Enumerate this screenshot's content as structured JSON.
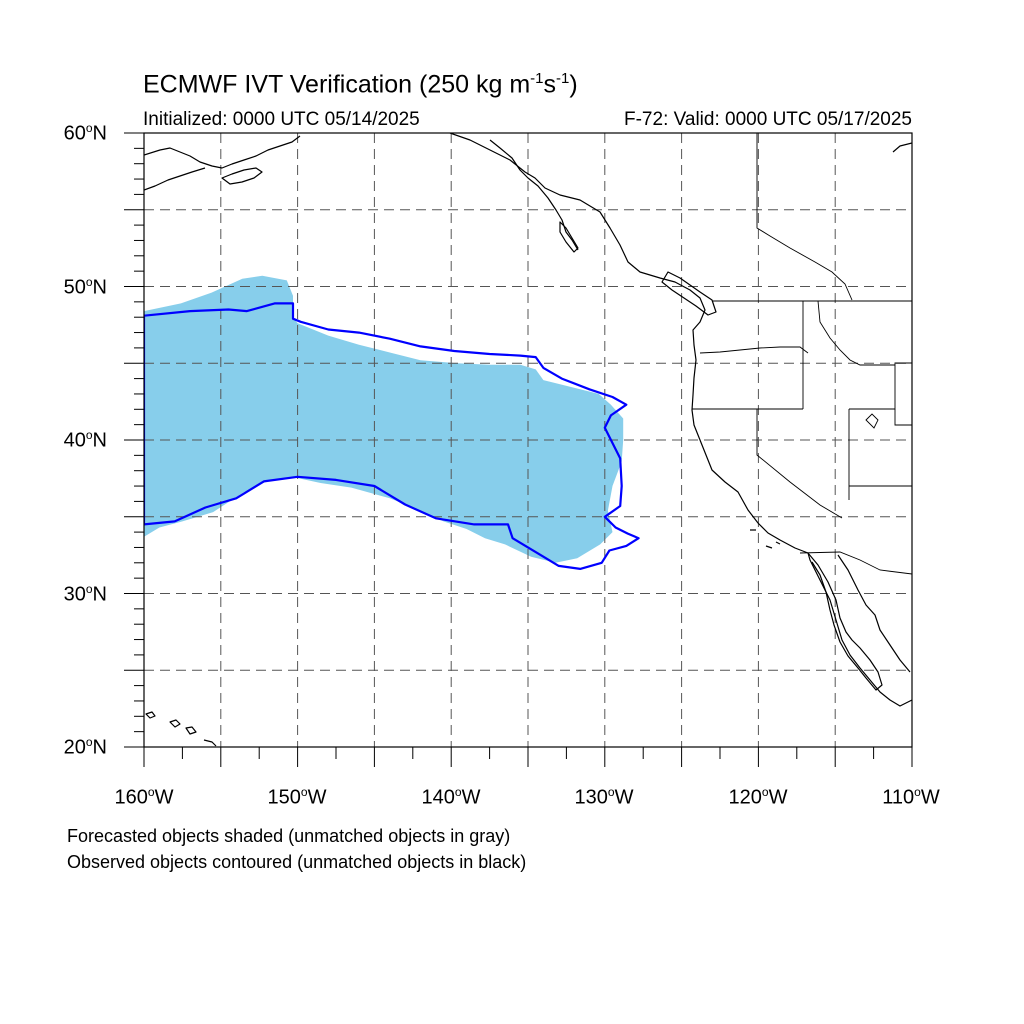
{
  "title": {
    "main": "ECMWF IVT Verification (250 kg m",
    "sup1": "-1",
    "mid": "s",
    "sup2": "-1",
    "end": ")"
  },
  "subtitle": {
    "initialized": "Initialized: 0000 UTC 05/14/2025",
    "valid": "F-72: Valid: 0000 UTC 05/17/2025"
  },
  "axes": {
    "lat_labels": [
      {
        "num": "60",
        "dir": "N"
      },
      {
        "num": "50",
        "dir": "N"
      },
      {
        "num": "40",
        "dir": "N"
      },
      {
        "num": "30",
        "dir": "N"
      },
      {
        "num": "20",
        "dir": "N"
      }
    ],
    "lon_labels": [
      {
        "num": "160",
        "dir": "W"
      },
      {
        "num": "150",
        "dir": "W"
      },
      {
        "num": "140",
        "dir": "W"
      },
      {
        "num": "130",
        "dir": "W"
      },
      {
        "num": "120",
        "dir": "W"
      },
      {
        "num": "110",
        "dir": "W"
      }
    ],
    "degree_symbol": "o"
  },
  "notes": {
    "line1": "Forecasted objects shaded (unmatched objects in gray)",
    "line2": "Observed objects contoured (unmatched objects in black)"
  },
  "map_extent": {
    "lon_min": -160,
    "lon_max": -110,
    "lat_min": 20,
    "lat_max": 60
  },
  "colors": {
    "forecast_fill": "#87ceeb",
    "observed_contour": "#0000ff",
    "coastline": "#000000",
    "grid": "#555555"
  },
  "forecast_object": {
    "matched": true,
    "polygon_lonlat": [
      [
        -160,
        48.4
      ],
      [
        -157.6,
        48.9
      ],
      [
        -155.6,
        49.6
      ],
      [
        -153.6,
        50.5
      ],
      [
        -152.3,
        50.7
      ],
      [
        -150.7,
        50.4
      ],
      [
        -150.3,
        49.4
      ],
      [
        -150.3,
        48.0
      ],
      [
        -150,
        47.6
      ],
      [
        -148,
        46.8
      ],
      [
        -146,
        46.2
      ],
      [
        -144,
        45.7
      ],
      [
        -142,
        45.2
      ],
      [
        -139.6,
        45.0
      ],
      [
        -137.5,
        44.9
      ],
      [
        -135.5,
        44.9
      ],
      [
        -134.5,
        44.6
      ],
      [
        -134,
        43.9
      ],
      [
        -132,
        43.4
      ],
      [
        -130.4,
        43.0
      ],
      [
        -129.6,
        42.3
      ],
      [
        -128.8,
        41.4
      ],
      [
        -128.8,
        40.0
      ],
      [
        -128.9,
        38.6
      ],
      [
        -129.5,
        37.0
      ],
      [
        -129.8,
        35.4
      ],
      [
        -129.5,
        34.0
      ],
      [
        -130.3,
        33.2
      ],
      [
        -131.8,
        32.3
      ],
      [
        -133.2,
        32.0
      ],
      [
        -134.8,
        32.4
      ],
      [
        -136.5,
        33.2
      ],
      [
        -137.8,
        33.6
      ],
      [
        -139.0,
        34.2
      ],
      [
        -140.5,
        34.7
      ],
      [
        -142.0,
        35.4
      ],
      [
        -144.0,
        36.2
      ],
      [
        -146.5,
        36.9
      ],
      [
        -148.5,
        37.2
      ],
      [
        -150.4,
        37.6
      ],
      [
        -152.0,
        37.3
      ],
      [
        -153.5,
        36.6
      ],
      [
        -155.5,
        35.3
      ],
      [
        -157.5,
        34.7
      ],
      [
        -159.0,
        34.3
      ],
      [
        -160,
        33.7
      ]
    ]
  },
  "observed_object": {
    "matched": true,
    "polygon_lonlat": [
      [
        -160,
        48.1
      ],
      [
        -157.0,
        48.4
      ],
      [
        -154.5,
        48.5
      ],
      [
        -153.3,
        48.4
      ],
      [
        -151.5,
        48.9
      ],
      [
        -150.3,
        48.9
      ],
      [
        -150.3,
        47.9
      ],
      [
        -149.8,
        47.7
      ],
      [
        -148.0,
        47.2
      ],
      [
        -146.0,
        47.0
      ],
      [
        -144.0,
        46.6
      ],
      [
        -142.0,
        46.1
      ],
      [
        -139.8,
        45.8
      ],
      [
        -137.5,
        45.6
      ],
      [
        -135.5,
        45.5
      ],
      [
        -134.5,
        45.4
      ],
      [
        -134.0,
        44.7
      ],
      [
        -132.8,
        44.0
      ],
      [
        -131.0,
        43.3
      ],
      [
        -129.5,
        42.8
      ],
      [
        -128.6,
        42.3
      ],
      [
        -129.6,
        41.6
      ],
      [
        -130.0,
        40.8
      ],
      [
        -129.0,
        38.8
      ],
      [
        -128.9,
        37.0
      ],
      [
        -129.0,
        35.7
      ],
      [
        -130.0,
        35.0
      ],
      [
        -129.3,
        34.3
      ],
      [
        -128.5,
        33.9
      ],
      [
        -127.8,
        33.6
      ],
      [
        -128.6,
        33.1
      ],
      [
        -129.7,
        32.8
      ],
      [
        -130.2,
        32.0
      ],
      [
        -131.6,
        31.6
      ],
      [
        -133.0,
        31.8
      ],
      [
        -134.0,
        32.4
      ],
      [
        -136.0,
        33.6
      ],
      [
        -136.3,
        34.5
      ],
      [
        -138.5,
        34.5
      ],
      [
        -141.0,
        34.9
      ],
      [
        -143.0,
        35.8
      ],
      [
        -145.0,
        37.0
      ],
      [
        -147.5,
        37.4
      ],
      [
        -150.0,
        37.6
      ],
      [
        -152.2,
        37.3
      ],
      [
        -154.0,
        36.2
      ],
      [
        -156.0,
        35.6
      ],
      [
        -158.0,
        34.7
      ],
      [
        -160,
        34.5
      ]
    ]
  }
}
